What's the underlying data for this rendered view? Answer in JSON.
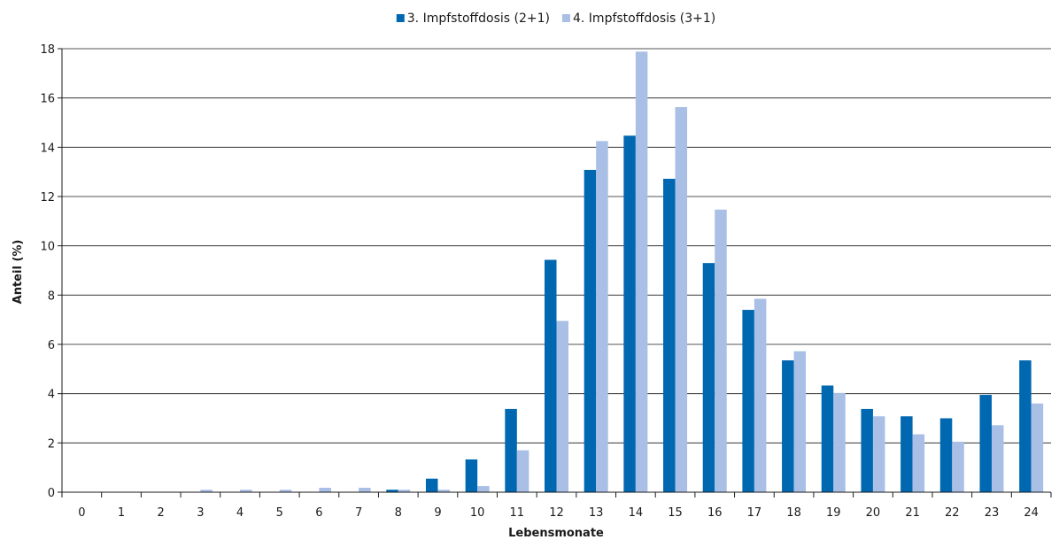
{
  "chart_data": {
    "type": "bar",
    "categories": [
      "0",
      "1",
      "2",
      "3",
      "4",
      "5",
      "6",
      "7",
      "8",
      "9",
      "10",
      "11",
      "12",
      "13",
      "14",
      "15",
      "16",
      "17",
      "18",
      "19",
      "20",
      "21",
      "22",
      "23",
      "24"
    ],
    "series": [
      {
        "name": "3. Impfstoffdosis (2+1)",
        "color": "#0067b1",
        "values": [
          0,
          0,
          0,
          0,
          0,
          0,
          0,
          0,
          0.1,
          0.55,
          1.33,
          3.38,
          9.43,
          13.08,
          14.47,
          12.72,
          9.3,
          7.4,
          5.35,
          4.33,
          3.38,
          3.08,
          3.0,
          3.95,
          5.35
        ]
      },
      {
        "name": "4. Impfstoffdosis (3+1)",
        "color": "#a9bfe6",
        "values": [
          0,
          0,
          0,
          0.1,
          0.1,
          0.1,
          0.18,
          0.18,
          0.1,
          0.1,
          0.25,
          1.7,
          6.95,
          14.25,
          17.88,
          15.63,
          11.47,
          7.85,
          5.72,
          4.03,
          3.08,
          2.35,
          2.05,
          2.72,
          3.6
        ]
      }
    ],
    "title": "",
    "xlabel": "Lebensmonate",
    "ylabel": "Anteil (%)",
    "ylim": [
      0,
      18
    ],
    "yticks": [
      0,
      2,
      4,
      6,
      8,
      10,
      12,
      14,
      16,
      18
    ],
    "grid": true,
    "legend_position": "top-center"
  }
}
